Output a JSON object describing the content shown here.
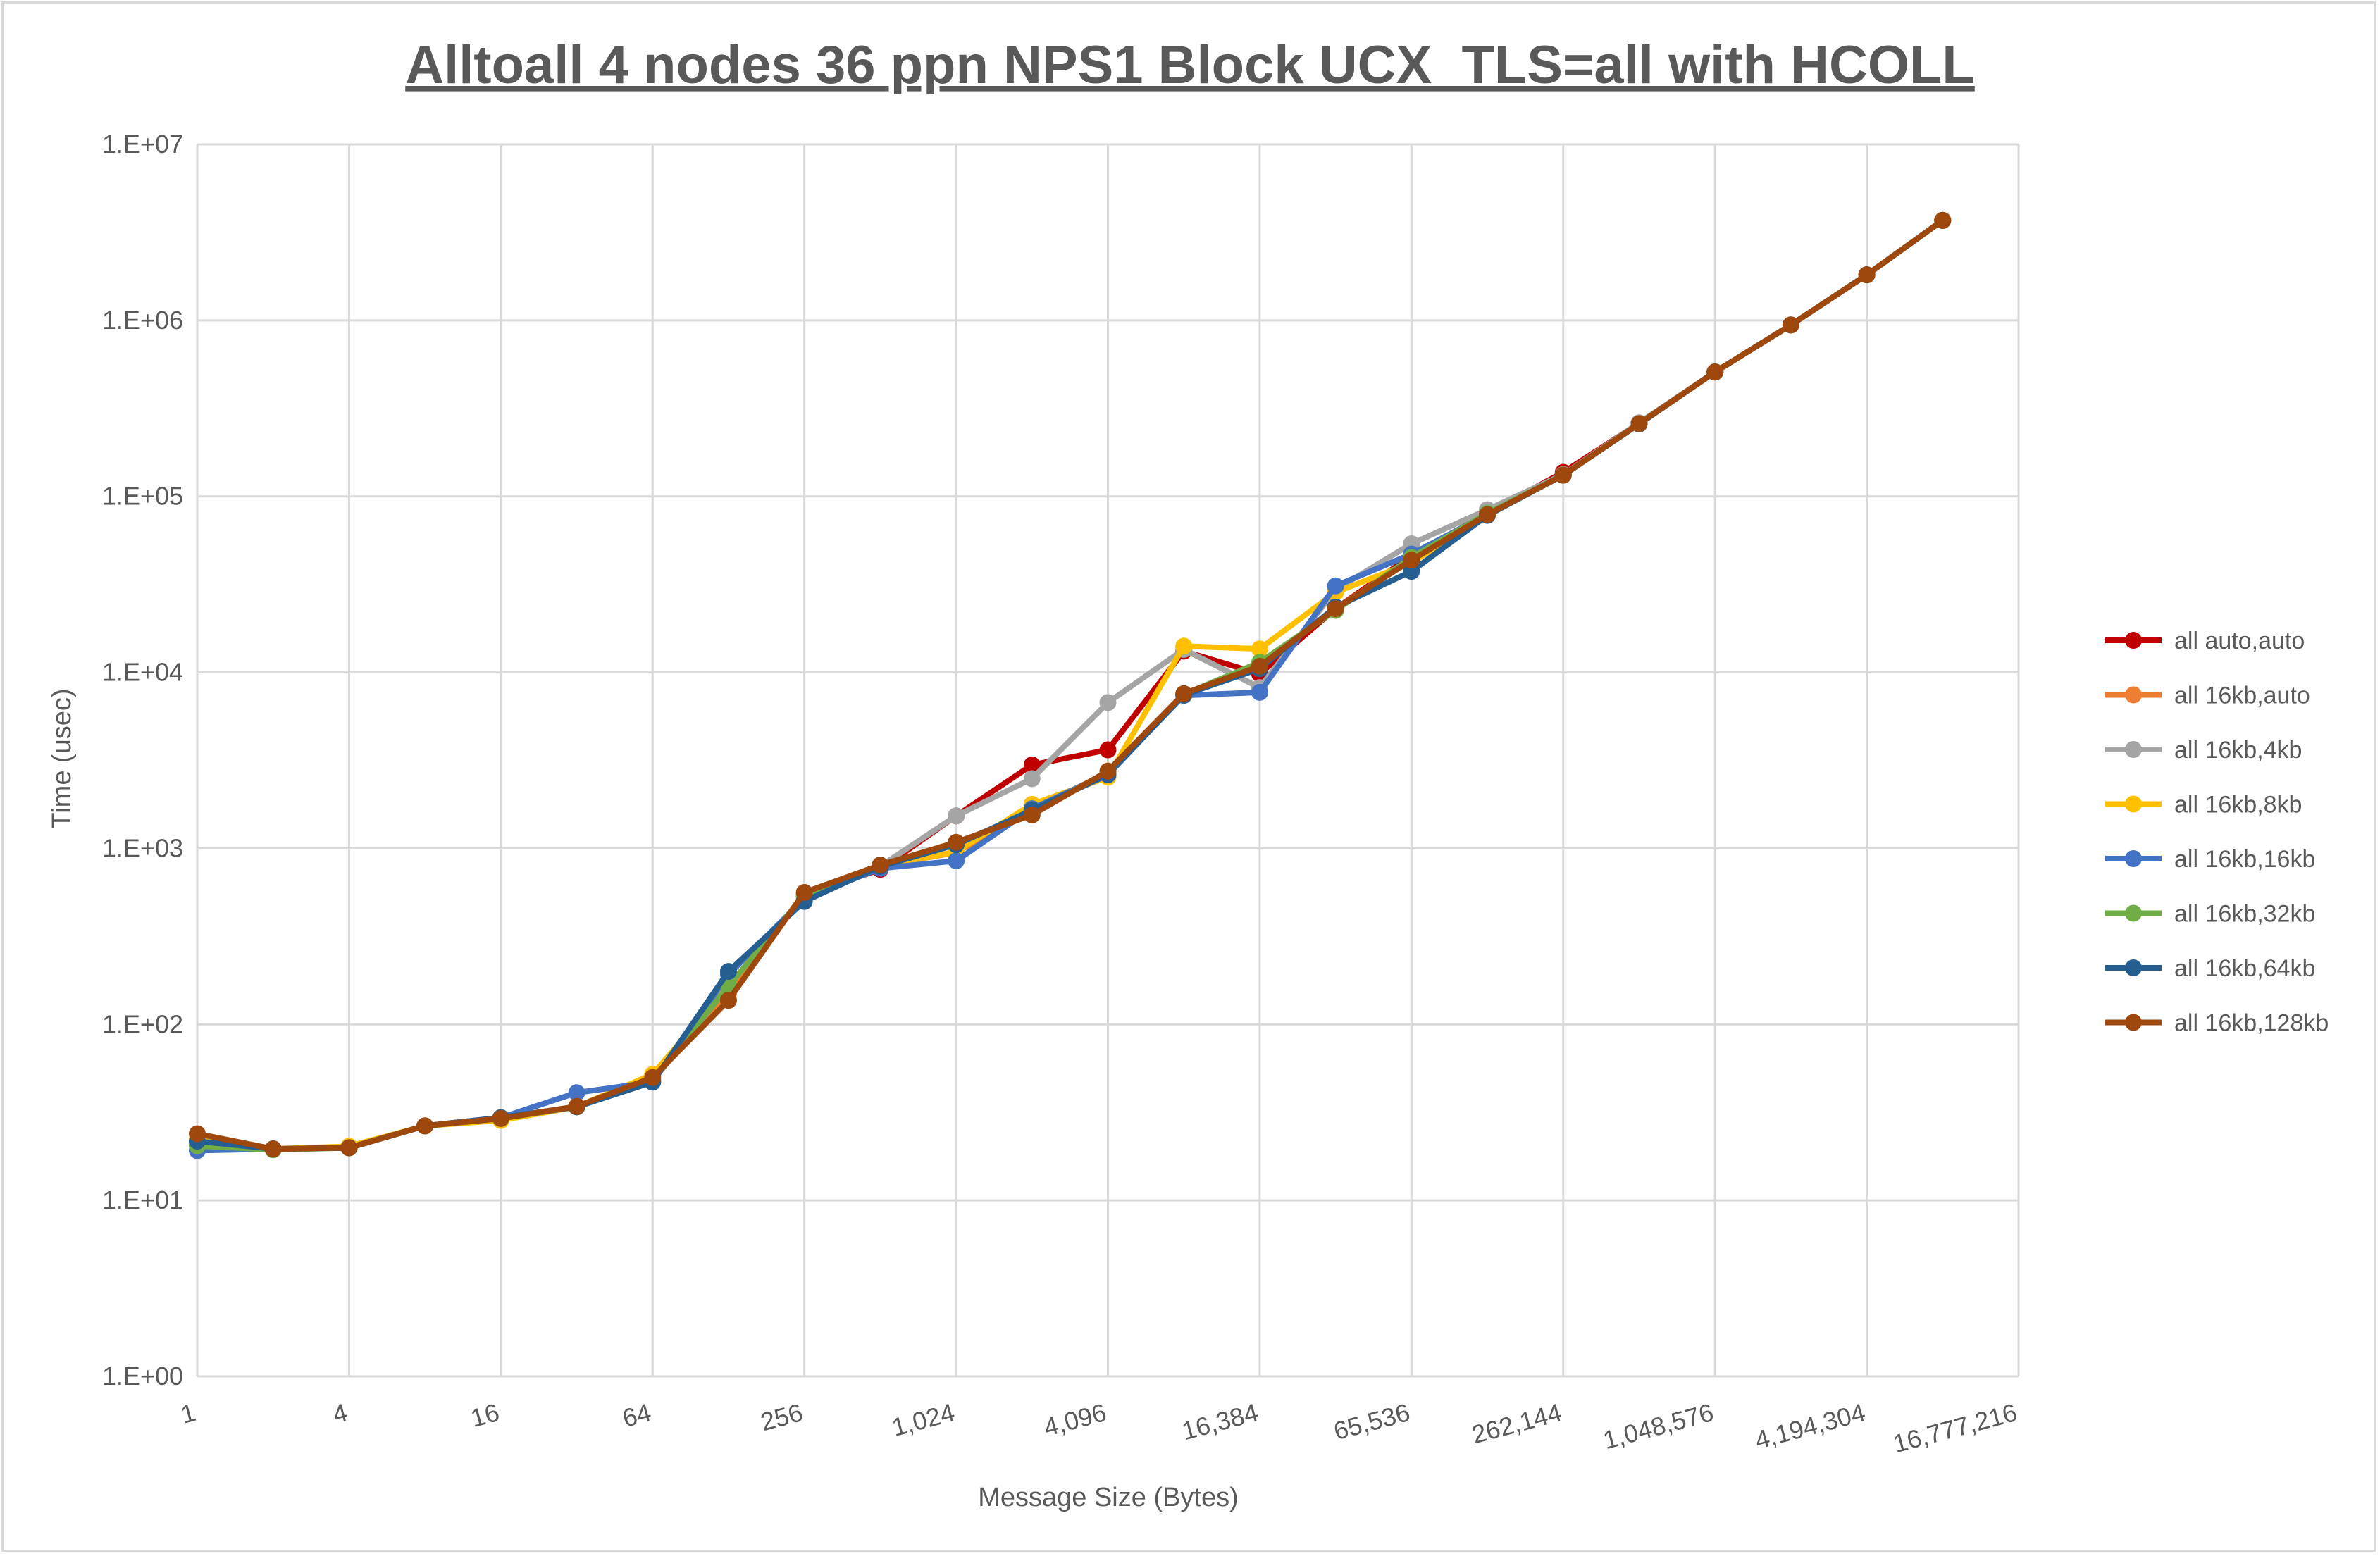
{
  "chart_data": {
    "type": "line",
    "title": "Alltoall 4 nodes 36 ppn NPS1 Block UCX_TLS=all with HCOLL",
    "xlabel": "Message Size (Bytes)",
    "ylabel": "Time (usec)",
    "x_scale": "log2",
    "y_scale": "log10",
    "xlim": [
      1,
      16777216
    ],
    "ylim": [
      1,
      10000000
    ],
    "grid": true,
    "legend_position": "right",
    "x_tick_labels": [
      "1",
      "4",
      "16",
      "64",
      "256",
      "1,024",
      "4,096",
      "16,384",
      "65,536",
      "262,144",
      "1,048,576",
      "4,194,304",
      "16,777,216"
    ],
    "x_ticks": [
      1,
      4,
      16,
      64,
      256,
      1024,
      4096,
      16384,
      65536,
      262144,
      1048576,
      4194304,
      16777216
    ],
    "y_tick_labels": [
      "1.E+00",
      "1.E+01",
      "1.E+02",
      "1.E+03",
      "1.E+04",
      "1.E+05",
      "1.E+06",
      "1.E+07"
    ],
    "y_ticks": [
      1,
      10,
      100,
      1000,
      10000,
      100000,
      1000000,
      10000000
    ],
    "x": [
      1,
      2,
      4,
      8,
      16,
      32,
      64,
      128,
      256,
      512,
      1024,
      2048,
      4096,
      8192,
      16384,
      32768,
      65536,
      131072,
      262144,
      524288,
      1048576,
      2097152,
      4194304,
      8388608
    ],
    "series": [
      {
        "name": "all auto,auto",
        "color": "#C00000",
        "values": [
          21,
          19.6,
          19.9,
          26.5,
          29.5,
          34,
          48,
          160,
          540,
          760,
          1530,
          2980,
          3630,
          13200,
          9800,
          23000,
          46000,
          80000,
          137000,
          260000,
          509000,
          942000,
          1815000,
          3700000
        ]
      },
      {
        "name": "all 16kb,auto",
        "color": "#ED7D31",
        "values": [
          22,
          19.6,
          19.9,
          26.5,
          29.2,
          34,
          50,
          150,
          550,
          790,
          950,
          1650,
          2700,
          7500,
          10800,
          23000,
          44000,
          79000,
          132000,
          258000,
          509000,
          942000,
          1815000,
          3700000
        ]
      },
      {
        "name": "all 16kb,4kb",
        "color": "#A5A5A5",
        "values": [
          21,
          19.6,
          19.9,
          26.5,
          29.5,
          34,
          48,
          165,
          540,
          790,
          1530,
          2490,
          6740,
          13500,
          8200,
          29500,
          53800,
          84000,
          133000,
          262000,
          509000,
          942000,
          1815000,
          3700000
        ]
      },
      {
        "name": "all 16kb,8kb",
        "color": "#FFC000",
        "values": [
          22,
          19.6,
          20.3,
          26.5,
          28.5,
          34,
          52,
          165,
          540,
          790,
          956,
          1780,
          2540,
          14100,
          13600,
          28500,
          42000,
          79000,
          132000,
          258000,
          509000,
          942000,
          1815000,
          3700000
        ]
      },
      {
        "name": "all 16kb,16kb",
        "color": "#4472C4",
        "values": [
          19.2,
          19.6,
          19.9,
          26.5,
          29.5,
          40.9,
          47,
          192,
          520,
          770,
          850,
          1680,
          2660,
          7400,
          7700,
          31000,
          47000,
          79000,
          132000,
          258000,
          509000,
          942000,
          1815000,
          3700000
        ]
      },
      {
        "name": "all 16kb,32kb",
        "color": "#70AD47",
        "values": [
          20.4,
          19.4,
          19.9,
          26.5,
          29.2,
          34,
          48,
          165,
          540,
          790,
          1060,
          1600,
          2700,
          7500,
          11400,
          22500,
          45000,
          80000,
          132000,
          258000,
          509000,
          942000,
          1815000,
          3700000
        ]
      },
      {
        "name": "all 16kb,64kb",
        "color": "#255E91",
        "values": [
          21.7,
          19.6,
          19.9,
          26.5,
          29.5,
          34,
          47,
          200,
          500,
          790,
          1050,
          1650,
          2620,
          7450,
          10500,
          23500,
          37500,
          78000,
          132000,
          258000,
          509000,
          942000,
          1815000,
          3700000
        ]
      },
      {
        "name": "all 16kb,128kb",
        "color": "#9E480E",
        "values": [
          23.9,
          19.6,
          19.9,
          26.5,
          29.2,
          34.2,
          49.9,
          137,
          562,
          804,
          1083,
          1549,
          2750,
          7570,
          10830,
          23000,
          43400,
          78800,
          132000,
          259000,
          509000,
          942000,
          1815000,
          3700000
        ]
      }
    ]
  }
}
